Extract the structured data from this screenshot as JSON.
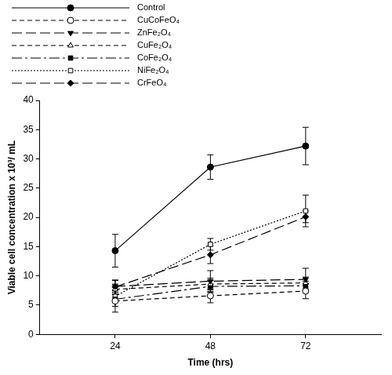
{
  "chart_data": {
    "type": "line",
    "x_label": "Time (hrs)",
    "y_label": "Viable cell concentration x 10³/ mL",
    "x": [
      24,
      48,
      72
    ],
    "xlim": [
      5,
      91
    ],
    "xticks": [
      24,
      48,
      72
    ],
    "ylim": [
      0,
      40
    ],
    "yticks": [
      0,
      5,
      10,
      15,
      20,
      25,
      30,
      35,
      40
    ],
    "grid": false,
    "legend": "top-left",
    "series": [
      {
        "name": "Control",
        "color": "#000000",
        "marker": "circle",
        "line_style": "solid",
        "values": [
          14.3,
          28.6,
          32.2
        ],
        "errors": [
          2.8,
          2.1,
          3.2
        ]
      },
      {
        "name": "CuCoFeO₄",
        "color": "#000000",
        "marker": "open-circle",
        "line_style": "dashed",
        "values": [
          5.7,
          6.6,
          7.4
        ],
        "errors": [
          1.9,
          1.2,
          1.3
        ]
      },
      {
        "name": "ZnFe₂O₄",
        "color": "#000000",
        "marker": "triangle-down",
        "line_style": "long-dash",
        "values": [
          8.2,
          9.1,
          9.4
        ],
        "errors": [
          1.0,
          1.8,
          1.9
        ]
      },
      {
        "name": "CuFe₂O₄",
        "color": "#000000",
        "marker": "open-triangle",
        "line_style": "dashed",
        "values": [
          7.7,
          8.6,
          8.8
        ],
        "errors": [
          0.9,
          1.0,
          1.0
        ]
      },
      {
        "name": "CoFe₂O₄",
        "color": "#000000",
        "marker": "square",
        "line_style": "dash-dot",
        "values": [
          6.0,
          8.2,
          8.3
        ],
        "errors": [
          1.2,
          1.0,
          0.8
        ]
      },
      {
        "name": "NiFe₂O₄",
        "color": "#000000",
        "marker": "open-square",
        "line_style": "dotted",
        "values": [
          6.5,
          15.4,
          21.1
        ],
        "errors": [
          1.0,
          1.0,
          2.7
        ]
      },
      {
        "name": "CrFeO₄",
        "color": "#000000",
        "marker": "diamond",
        "line_style": "long-dash",
        "values": [
          8.1,
          13.6,
          20.1
        ],
        "errors": [
          1.2,
          1.5,
          1.0
        ]
      }
    ]
  }
}
